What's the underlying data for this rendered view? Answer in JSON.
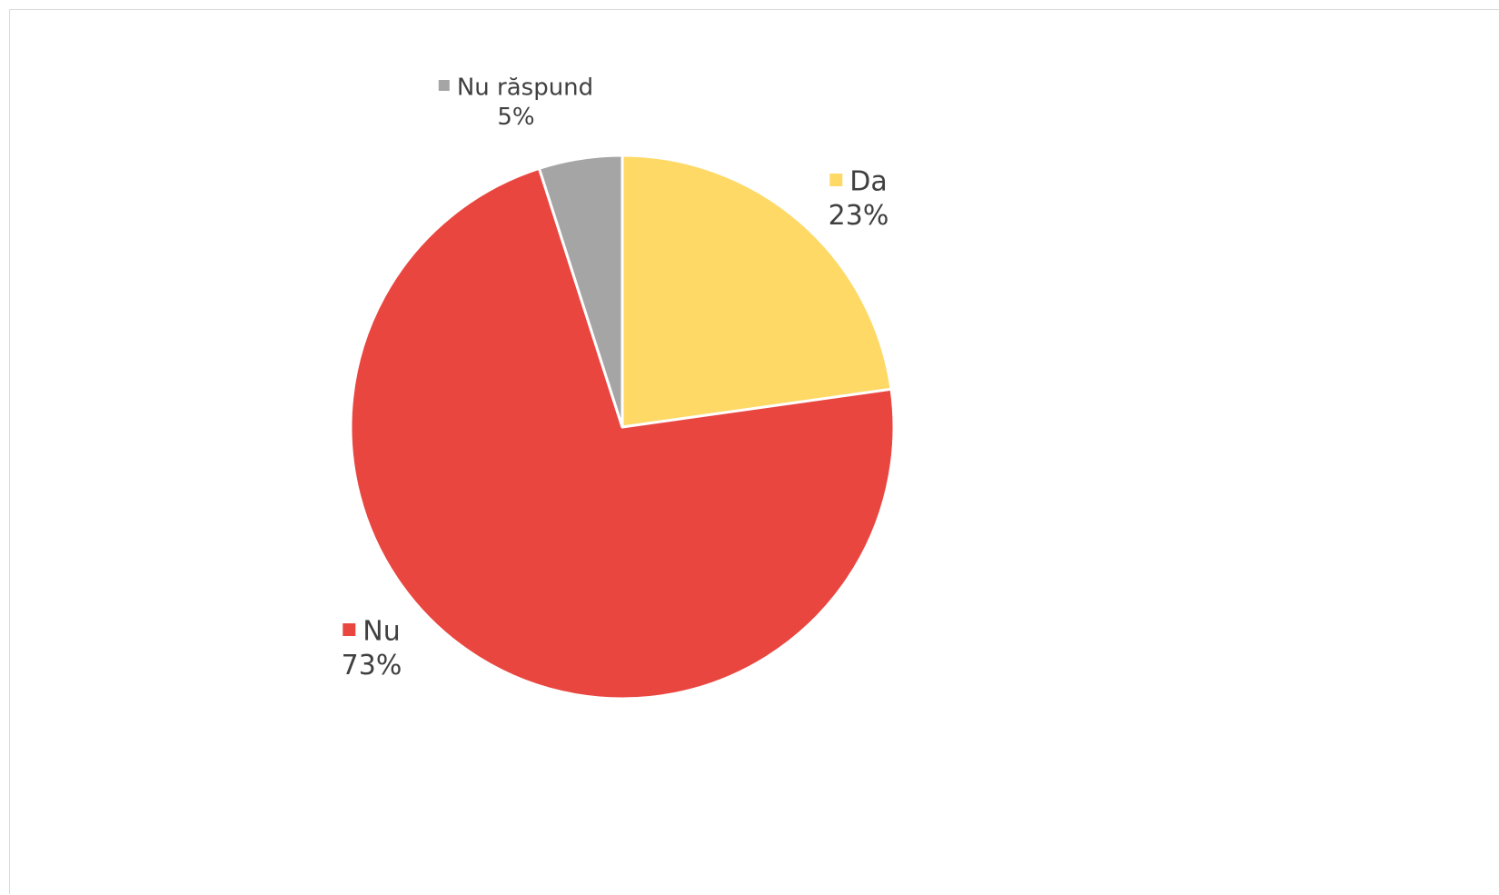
{
  "chart_data": {
    "type": "pie",
    "title": "",
    "series": [
      {
        "name": "",
        "slices": [
          {
            "label": "Da",
            "value": 23,
            "percent_label": "23%",
            "color": "#FFD966"
          },
          {
            "label": "Nu",
            "value": 73,
            "percent_label": "73%",
            "color": "#E94640"
          },
          {
            "label": "Nu răspund",
            "value": 5,
            "percent_label": "5%",
            "color": "#A5A5A5"
          }
        ]
      }
    ],
    "start_angle_deg": 0,
    "direction": "clockwise",
    "slice_border_color": "#FFFFFF",
    "data_labels": "category-and-percent-outside",
    "legend": "none"
  }
}
